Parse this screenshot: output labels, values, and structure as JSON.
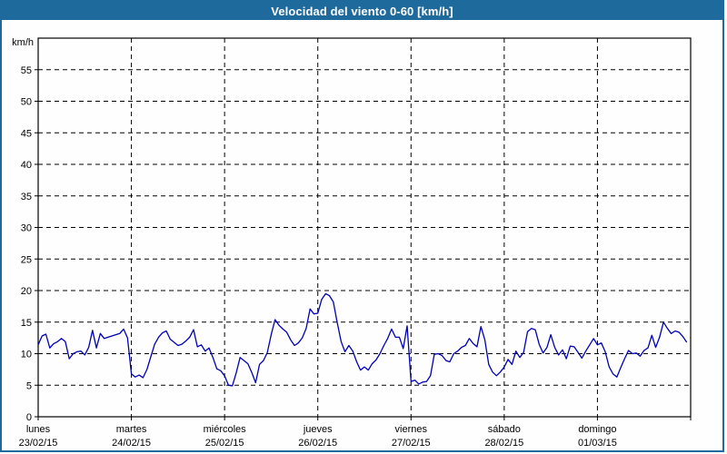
{
  "title": "Velocidad del viento 0-60 [km/h]",
  "colors": {
    "titlebar_bg": "#1f6a9c",
    "titlebar_text": "#ffffff",
    "panel_border": "#1f6a9c",
    "plot_bg": "#fdfefd",
    "grid": "#000000",
    "series": "#0000b4"
  },
  "chart_data": {
    "type": "line",
    "title": "Velocidad del viento 0-60 [km/h]",
    "ylabel": "km/h",
    "ylim": [
      0,
      60
    ],
    "ytick_step": 5,
    "ytick_labels": [
      "0",
      "5",
      "10",
      "15",
      "20",
      "25",
      "30",
      "35",
      "40",
      "45",
      "50",
      "55"
    ],
    "grid": "dashed, horizontal every 5 km/h and vertical at each day boundary",
    "legend": "none",
    "x_axis_note": "one week, hourly samples (24 values per day)",
    "series_name": "velocidad del viento",
    "series_color": "#0000b4",
    "days": [
      {
        "label": "lunes",
        "date": "23/02/15",
        "values": [
          11.4,
          12.8,
          13.1,
          10.9,
          11.6,
          11.9,
          12.4,
          11.9,
          9.2,
          10.0,
          10.3,
          10.4,
          9.8,
          11.0,
          13.7,
          10.9,
          13.2,
          12.4,
          12.6,
          12.8,
          13.0,
          13.2,
          13.9,
          12.5
        ]
      },
      {
        "label": "martes",
        "date": "24/02/15",
        "values": [
          6.8,
          6.3,
          6.6,
          6.2,
          7.5,
          9.5,
          11.5,
          12.6,
          13.3,
          13.6,
          12.3,
          11.8,
          11.3,
          11.5,
          12.0,
          12.6,
          13.8,
          11.1,
          11.4,
          10.4,
          10.9,
          9.4,
          7.6,
          7.3
        ]
      },
      {
        "label": "miércoles",
        "date": "25/02/15",
        "values": [
          6.5,
          5.0,
          4.9,
          7.0,
          9.4,
          8.9,
          8.4,
          7.0,
          5.4,
          8.3,
          8.9,
          10.2,
          13.0,
          15.4,
          14.5,
          13.9,
          13.4,
          12.2,
          11.3,
          11.7,
          12.5,
          14.0,
          17.1,
          16.3
        ]
      },
      {
        "label": "jueves",
        "date": "26/02/15",
        "values": [
          16.4,
          18.6,
          19.5,
          19.2,
          18.2,
          14.9,
          11.9,
          10.3,
          11.3,
          10.4,
          8.7,
          7.4,
          7.9,
          7.4,
          8.4,
          9.0,
          10.0,
          11.3,
          12.4,
          13.9,
          12.6,
          12.6,
          10.8,
          14.4
        ]
      },
      {
        "label": "viernes",
        "date": "27/02/15",
        "values": [
          5.6,
          5.8,
          5.2,
          5.5,
          5.6,
          6.5,
          9.9,
          10.0,
          9.7,
          8.9,
          8.7,
          10.0,
          10.4,
          11.0,
          11.3,
          12.4,
          11.6,
          11.1,
          14.3,
          12.2,
          8.3,
          7.1,
          6.5,
          7.1
        ]
      },
      {
        "label": "sábado",
        "date": "28/02/15",
        "values": [
          7.9,
          9.1,
          8.3,
          10.4,
          9.4,
          10.2,
          13.5,
          14.0,
          13.8,
          11.5,
          10.1,
          11.0,
          13.0,
          11.0,
          9.8,
          10.6,
          9.2,
          11.2,
          11.1,
          10.2,
          9.3,
          10.4,
          11.4,
          12.4
        ]
      },
      {
        "label": "domingo",
        "date": "01/03/15",
        "values": [
          11.4,
          11.7,
          10.3,
          7.9,
          6.8,
          6.3,
          7.8,
          9.2,
          10.5,
          10.0,
          10.1,
          9.6,
          10.5,
          10.9,
          12.9,
          11.0,
          12.6,
          15.0,
          14.0,
          13.2,
          13.6,
          13.4,
          12.7,
          11.8
        ]
      }
    ]
  }
}
